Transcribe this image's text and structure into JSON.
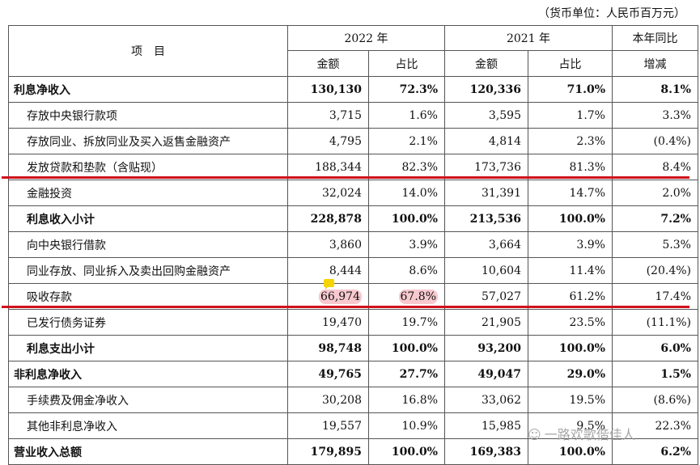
{
  "unit_note": "（货币单位：人民币百万元）",
  "header": {
    "item": "项　目",
    "year1": "2022 年",
    "year2": "2021 年",
    "yoy": "本年同比",
    "yoy2": "增减",
    "amount": "金额",
    "share": "占比"
  },
  "rows": [
    {
      "label": "利息净收入",
      "a1": "130,130",
      "s1": "72.3%",
      "a2": "120,336",
      "s2": "71.0%",
      "chg": "8.1%"
    },
    {
      "label": "存放中央银行款项",
      "a1": "3,715",
      "s1": "1.6%",
      "a2": "3,595",
      "s2": "1.7%",
      "chg": "3.3%"
    },
    {
      "label": "存放同业、拆放同业及买入返售金融资产",
      "a1": "4,795",
      "s1": "2.1%",
      "a2": "4,814",
      "s2": "2.3%",
      "chg": "(0.4%)"
    },
    {
      "label": "发放贷款和垫款（含贴现）",
      "a1": "188,344",
      "s1": "82.3%",
      "a2": "173,736",
      "s2": "81.3%",
      "chg": "8.4%"
    },
    {
      "label": "金融投资",
      "a1": "32,024",
      "s1": "14.0%",
      "a2": "31,391",
      "s2": "14.7%",
      "chg": "2.0%"
    },
    {
      "label": "利息收入小计",
      "a1": "228,878",
      "s1": "100.0%",
      "a2": "213,536",
      "s2": "100.0%",
      "chg": "7.2%"
    },
    {
      "label": "向中央银行借款",
      "a1": "3,860",
      "s1": "3.9%",
      "a2": "3,664",
      "s2": "3.9%",
      "chg": "5.3%"
    },
    {
      "label": "同业存放、同业拆入及卖出回购金融资产",
      "a1": "8,444",
      "s1": "8.6%",
      "a2": "10,604",
      "s2": "11.4%",
      "chg": "(20.4%)"
    },
    {
      "label": "吸收存款",
      "a1": "66,974",
      "s1": "67.8%",
      "a2": "57,027",
      "s2": "61.2%",
      "chg": "17.4%"
    },
    {
      "label": "已发行债务证券",
      "a1": "19,470",
      "s1": "19.7%",
      "a2": "21,905",
      "s2": "23.5%",
      "chg": "(11.1%)"
    },
    {
      "label": "利息支出小计",
      "a1": "98,748",
      "s1": "100.0%",
      "a2": "93,200",
      "s2": "100.0%",
      "chg": "6.0%"
    },
    {
      "label": "非利息净收入",
      "a1": "49,765",
      "s1": "27.7%",
      "a2": "49,047",
      "s2": "29.0%",
      "chg": "1.5%"
    },
    {
      "label": "手续费及佣金净收入",
      "a1": "30,208",
      "s1": "16.8%",
      "a2": "33,062",
      "s2": "19.5%",
      "chg": "(8.6%)"
    },
    {
      "label": "其他非利息净收入",
      "a1": "19,557",
      "s1": "10.9%",
      "a2": "15,985",
      "s2": "9.5%",
      "chg": "22.3%"
    },
    {
      "label": "营业收入总额",
      "a1": "179,895",
      "s1": "100.0%",
      "a2": "169,383",
      "s2": "100.0%",
      "chg": "6.2%"
    }
  ],
  "watermark": "一路欢歌偕佳人",
  "colors": {
    "highlight_line": "#d0121d",
    "highlight_fill": "#f7c9cf",
    "note_icon": "#f5d400"
  }
}
